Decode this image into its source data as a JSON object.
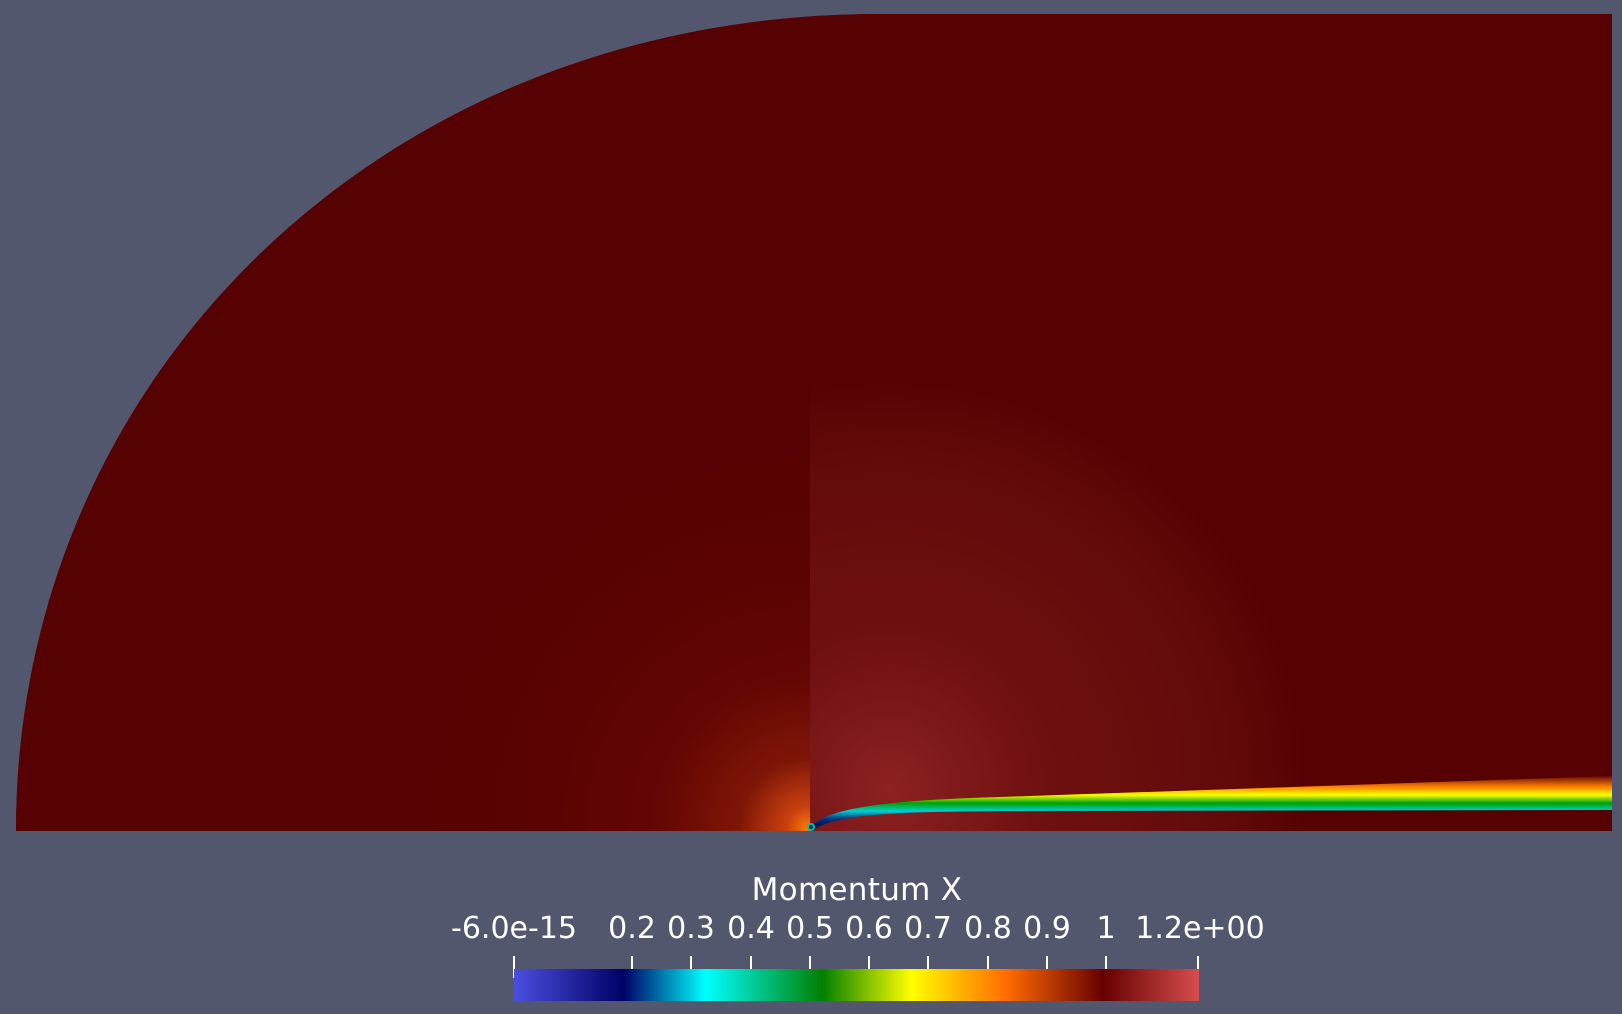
{
  "colorbar": {
    "title": "Momentum X",
    "min_label": "-6.0e-15",
    "max_label": "1.2e+00",
    "tick_labels": [
      "0.2",
      "0.3",
      "0.4",
      "0.5",
      "0.6",
      "0.7",
      "0.8",
      "0.9",
      "1"
    ],
    "range": [
      -6e-15,
      1.2
    ],
    "colors": [
      "#4a4fe0",
      "#000066",
      "#00ffff",
      "#008000",
      "#ffff00",
      "#ff6a00",
      "#660000",
      "#d64d4d"
    ]
  },
  "background_color": "#52576e"
}
